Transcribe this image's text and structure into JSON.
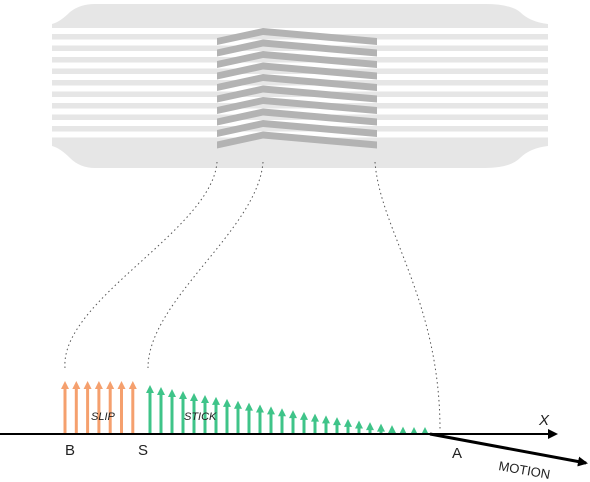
{
  "labels": {
    "slip": "SLIP",
    "stick": "STICK",
    "point_b": "B",
    "point_s": "S",
    "point_a": "A",
    "axis_x": "X",
    "motion": "MOTION"
  },
  "colors": {
    "body": "#e6e6e6",
    "stripe": "#ffffff",
    "pattern": "#b3b3b3",
    "slip_arrow": "#f5a06e",
    "stick_arrow": "#3fc489",
    "axis": "#000000",
    "guide": "#555555"
  },
  "stripes": 10,
  "slip_arrow_count": 7,
  "stick_arrow_count": 26
}
